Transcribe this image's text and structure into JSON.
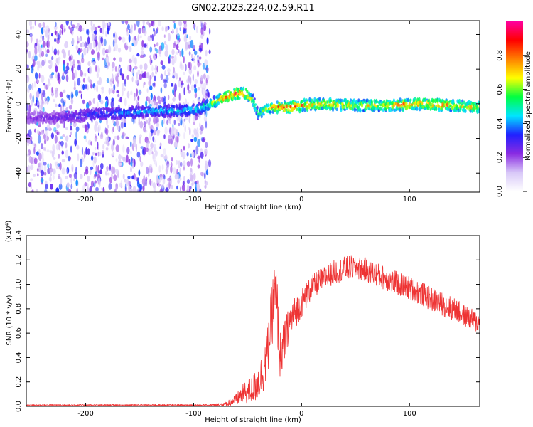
{
  "chart_data": [
    {
      "type": "heatmap",
      "title": "GN02.2023.224.02.59.R11",
      "xlabel": "Height of straight line (km)",
      "ylabel": "Frequency (Hz)",
      "xlim": [
        -255,
        165
      ],
      "ylim": [
        -51,
        48
      ],
      "xticks": [
        -200,
        -100,
        0,
        100
      ],
      "yticks": [
        -40,
        -20,
        0,
        20,
        40
      ],
      "grid": false,
      "colorbar": {
        "label": "Normalized spectral amplitude",
        "range": [
          0,
          1
        ],
        "ticks": [
          "0.0",
          "0.2",
          "0.4",
          "0.6",
          "0.8"
        ],
        "colors": [
          "#ffffff",
          "#d8c8f8",
          "#8a2be2",
          "#2020ff",
          "#00e5ff",
          "#00ff40",
          "#ffff00",
          "#ff8000",
          "#ff0000",
          "#ff00a0"
        ]
      },
      "ridge": {
        "description_units": "x in km, y in Hz",
        "x": [
          -255,
          -220,
          -190,
          -160,
          -130,
          -110,
          -95,
          -85,
          -78,
          -70,
          -60,
          -52,
          -45,
          -40,
          -35,
          -30,
          -20,
          -10,
          0,
          20,
          50,
          80,
          110,
          140,
          165
        ],
        "y": [
          -8,
          -8,
          -6,
          -5,
          -4,
          -4,
          -3,
          0,
          2,
          4,
          6,
          6,
          2,
          -6,
          -4,
          -2,
          -2,
          -2,
          -1,
          0,
          -1,
          -1,
          0,
          -1,
          -2
        ],
        "peak_amplitude": [
          0.15,
          0.2,
          0.3,
          0.35,
          0.4,
          0.4,
          0.45,
          0.55,
          0.7,
          0.85,
          0.9,
          0.85,
          0.6,
          0.5,
          0.55,
          0.7,
          0.85,
          0.85,
          0.8,
          0.75,
          0.7,
          0.75,
          0.8,
          0.75,
          0.7
        ]
      },
      "noise_region_x": [
        -255,
        -85
      ]
    },
    {
      "type": "line",
      "xlabel": "Height of straight line (km)",
      "ylabel": "SNR (10 * v/v)",
      "y_multiplier": "(x10⁴)",
      "xlim": [
        -255,
        165
      ],
      "ylim": [
        0,
        1.4
      ],
      "xticks": [
        -200,
        -100,
        0,
        100
      ],
      "yticks": [
        "0.0",
        "0.2",
        "0.4",
        "0.6",
        "0.8",
        "1.0",
        "1.2",
        "1.4"
      ],
      "color": "#ee3333",
      "grid": false,
      "series": [
        {
          "x": [
            -255,
            -200,
            -150,
            -100,
            -80,
            -70,
            -60,
            -55,
            -50,
            -45,
            -40,
            -35,
            -32,
            -30,
            -28,
            -26,
            -24,
            -22,
            -20,
            -18,
            -15,
            -12,
            -10,
            -5,
            0,
            5,
            10,
            20,
            30,
            40,
            50,
            60,
            70,
            80,
            90,
            100,
            110,
            120,
            130,
            140,
            150,
            160,
            165
          ],
          "y": [
            0.01,
            0.01,
            0.01,
            0.01,
            0.01,
            0.02,
            0.06,
            0.1,
            0.12,
            0.14,
            0.2,
            0.3,
            0.42,
            0.55,
            0.72,
            0.85,
            0.9,
            0.7,
            0.4,
            0.45,
            0.55,
            0.65,
            0.72,
            0.78,
            0.85,
            0.92,
            0.98,
            1.05,
            1.1,
            1.13,
            1.14,
            1.12,
            1.08,
            1.04,
            1.0,
            0.97,
            0.93,
            0.88,
            0.84,
            0.8,
            0.75,
            0.7,
            0.68
          ],
          "noise": [
            0.005,
            0.006,
            0.006,
            0.006,
            0.008,
            0.02,
            0.05,
            0.08,
            0.1,
            0.12,
            0.15,
            0.18,
            0.2,
            0.22,
            0.25,
            0.3,
            0.3,
            0.28,
            0.22,
            0.2,
            0.18,
            0.16,
            0.15,
            0.13,
            0.12,
            0.11,
            0.1,
            0.1,
            0.1,
            0.1,
            0.1,
            0.1,
            0.1,
            0.1,
            0.1,
            0.1,
            0.1,
            0.1,
            0.1,
            0.1,
            0.09,
            0.09,
            0.09
          ]
        }
      ]
    }
  ]
}
